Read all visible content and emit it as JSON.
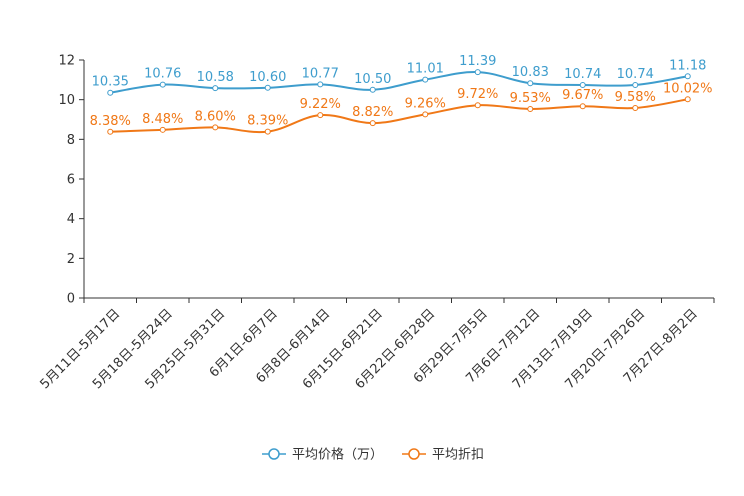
{
  "chart_data": {
    "type": "line",
    "categories": [
      "5月11日-5月17日",
      "5月18日-5月24日",
      "5月25日-5月31日",
      "6月1日-6月7日",
      "6月8日-6月14日",
      "6月15日-6月21日",
      "6月22日-6月28日",
      "6月29日-7月5日",
      "7月6日-7月12日",
      "7月13日-7月19日",
      "7月20日-7月26日",
      "7月27日-8月2日"
    ],
    "series": [
      {
        "name": "平均价格（万）",
        "color": "#3e9dcd",
        "values": [
          10.35,
          10.76,
          10.58,
          10.6,
          10.77,
          10.5,
          11.01,
          11.39,
          10.83,
          10.74,
          10.74,
          11.18
        ],
        "labels": [
          "10.35",
          "10.76",
          "10.58",
          "10.60",
          "10.77",
          "10.50",
          "11.01",
          "11.39",
          "10.83",
          "10.74",
          "10.74",
          "11.18"
        ]
      },
      {
        "name": "平均折扣",
        "color": "#f07817",
        "values": [
          8.38,
          8.48,
          8.6,
          8.39,
          9.22,
          8.82,
          9.26,
          9.72,
          9.53,
          9.67,
          9.58,
          10.02
        ],
        "labels": [
          "8.38%",
          "8.48%",
          "8.60%",
          "8.39%",
          "9.22%",
          "8.82%",
          "9.26%",
          "9.72%",
          "9.53%",
          "9.67%",
          "9.58%",
          "10.02%"
        ]
      }
    ],
    "yticks": [
      "0",
      "2",
      "4",
      "6",
      "8",
      "10",
      "12"
    ],
    "ylim": [
      0,
      12
    ],
    "title": "",
    "xlabel": "",
    "ylabel": "",
    "legend_position": "bottom-center"
  }
}
